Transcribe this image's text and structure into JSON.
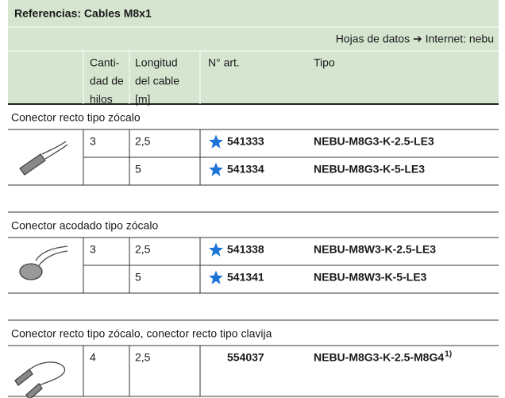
{
  "header": {
    "title": "Referencias: Cables M8x1",
    "note": "Hojas de datos ➔ Internet: nebu",
    "columns": [
      [
        "Canti-",
        "dad de",
        "hilos"
      ],
      [
        "Longitud",
        "del cable",
        "[m]"
      ],
      [
        "N° art."
      ],
      [
        "Tipo"
      ]
    ]
  },
  "sections": [
    {
      "title": "Conector recto tipo zócalo",
      "rows": [
        {
          "wires": "3",
          "length": "2,5",
          "part_no": "541333",
          "starred": true,
          "type": "NEBU-M8G3-K-2.5-LE3"
        },
        {
          "wires": null,
          "length": "5",
          "part_no": "541334",
          "starred": true,
          "type": "NEBU-M8G3-K-5-LE3"
        }
      ]
    },
    {
      "title": "Conector acodado tipo zócalo",
      "rows": [
        {
          "wires": "3",
          "length": "2,5",
          "part_no": "541338",
          "starred": true,
          "type": "NEBU-M8W3-K-2.5-LE3"
        },
        {
          "wires": null,
          "length": "5",
          "part_no": "541341",
          "starred": true,
          "type": "NEBU-M8W3-K-5-LE3"
        }
      ]
    },
    {
      "title": "Conector recto tipo zócalo, conector recto tipo clavija",
      "rows": [
        {
          "wires": "4",
          "length": "2,5",
          "part_no": "554037",
          "starred": false,
          "type": "NEBU-M8G3-K-2.5-M8G4",
          "footnote": "1)"
        }
      ]
    }
  ]
}
